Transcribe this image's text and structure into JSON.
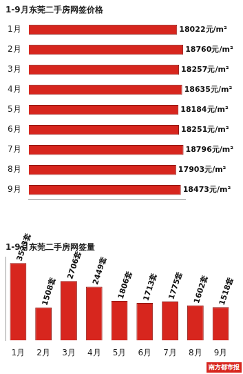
{
  "chart_data": [
    {
      "type": "bar",
      "orientation": "horizontal",
      "title": "1-9月东莞二手房网签价格",
      "categories": [
        "1月",
        "2月",
        "3月",
        "4月",
        "5月",
        "6月",
        "7月",
        "8月",
        "9月"
      ],
      "values": [
        18022,
        18760,
        18257,
        18635,
        18184,
        18251,
        18796,
        17903,
        18473
      ],
      "value_labels": [
        "18022元/m²",
        "18760元/m²",
        "18257元/m²",
        "18635元/m²",
        "18184元/m²",
        "18251元/m²",
        "18796元/m²",
        "17903元/m²",
        "18473元/m²"
      ],
      "data_labels": true,
      "color": "#d7261e",
      "xlim": [
        0,
        19000
      ],
      "tick_labels": "y",
      "grid": false
    },
    {
      "type": "bar",
      "title": "1-9月东莞二手房网签量",
      "categories": [
        "1月",
        "2月",
        "3月",
        "4月",
        "5月",
        "6月",
        "7月",
        "8月",
        "9月"
      ],
      "values": [
        3523,
        1508,
        2706,
        2449,
        1806,
        1713,
        1775,
        1602,
        1518
      ],
      "value_labels": [
        "3523套",
        "1508套",
        "2706套",
        "2449套",
        "1806套",
        "1713套",
        "1775套",
        "1602套",
        "1518套"
      ],
      "data_labels": true,
      "color": "#d7261e",
      "ylim": [
        0,
        3800
      ],
      "tick_labels": "x",
      "grid": false,
      "annotation": "南方都市报"
    }
  ]
}
